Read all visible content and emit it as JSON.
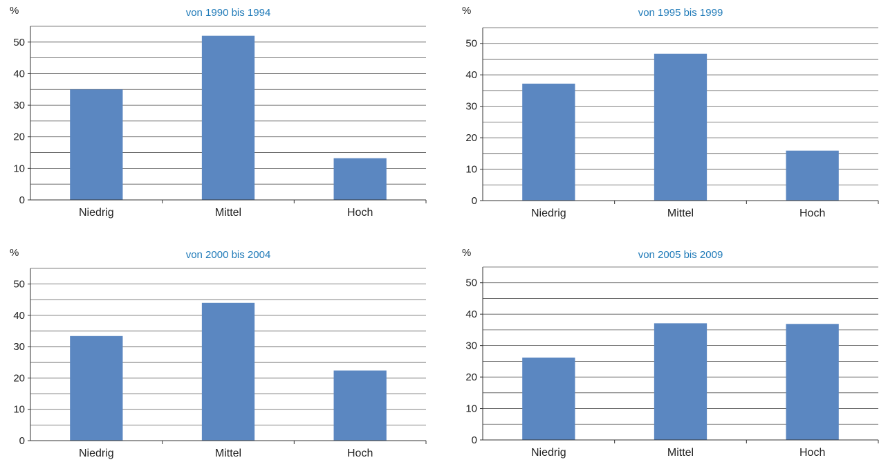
{
  "chart_data": [
    {
      "type": "bar",
      "title": "von 1990 bis 1994",
      "ylabel": "%",
      "categories": [
        "Niedrig",
        "Mittel",
        "Hoch"
      ],
      "values": [
        35,
        52,
        13.2
      ],
      "ylim": [
        0,
        55
      ],
      "yticks": [
        0,
        10,
        20,
        30,
        40,
        50
      ],
      "grid": true,
      "bar_color": "#5b87c1",
      "title_color": "#1f7ab8"
    },
    {
      "type": "bar",
      "title": "von 1995 bis 1999",
      "ylabel": "%",
      "categories": [
        "Niedrig",
        "Mittel",
        "Hoch"
      ],
      "values": [
        37.2,
        46.7,
        15.9
      ],
      "ylim": [
        0,
        55
      ],
      "yticks": [
        0,
        10,
        20,
        30,
        40,
        50
      ],
      "grid": true,
      "bar_color": "#5b87c1",
      "title_color": "#1f7ab8"
    },
    {
      "type": "bar",
      "title": "von 2000 bis 2004",
      "ylabel": "%",
      "categories": [
        "Niedrig",
        "Mittel",
        "Hoch"
      ],
      "values": [
        33.4,
        44,
        22.4
      ],
      "ylim": [
        0,
        55
      ],
      "yticks": [
        0,
        10,
        20,
        30,
        40,
        50
      ],
      "grid": true,
      "bar_color": "#5b87c1",
      "title_color": "#1f7ab8"
    },
    {
      "type": "bar",
      "title": "von 2005 bis 2009",
      "ylabel": "%",
      "categories": [
        "Niedrig",
        "Mittel",
        "Hoch"
      ],
      "values": [
        26.2,
        37.1,
        36.9
      ],
      "ylim": [
        0,
        55
      ],
      "yticks": [
        0,
        10,
        20,
        30,
        40,
        50
      ],
      "grid": true,
      "bar_color": "#5b87c1",
      "title_color": "#1f7ab8"
    }
  ]
}
